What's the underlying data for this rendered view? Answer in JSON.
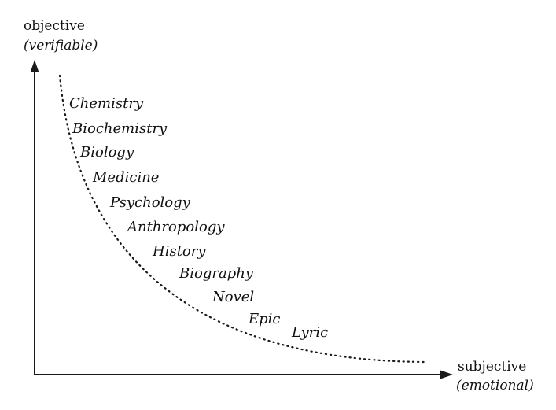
{
  "y_axis": {
    "label_line1": "objective",
    "label_line2": "(verifiable)"
  },
  "x_axis": {
    "label_line1": "subjective",
    "label_line2": "(emotional)"
  },
  "terms": [
    "Chemistry",
    "Biochemistry",
    "Biology",
    "Medicine",
    "Psychology",
    "Anthropology",
    "History",
    "Biography",
    "Novel",
    "Epic",
    "Lyric"
  ]
}
